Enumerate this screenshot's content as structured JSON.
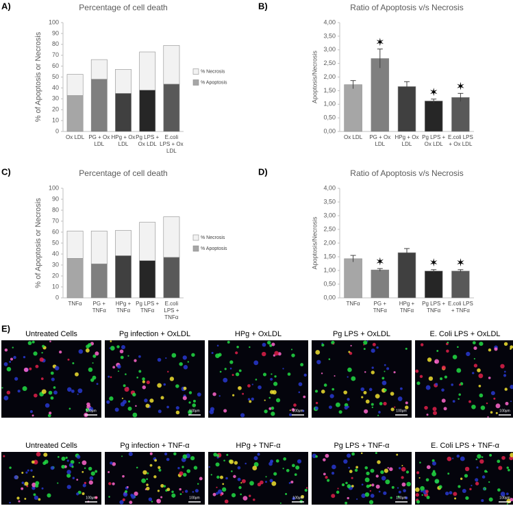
{
  "chart_data": [
    {
      "type": "stacked_bar",
      "panel_label": "A)",
      "title": "Percentage of cell death",
      "y_label": "% of Apoptosis or Necrosis",
      "categories": [
        "Ox LDL",
        "PG + Ox LDL",
        "HPg + Ox LDL",
        "Pg LPS + Ox LDL",
        "E.coli LPS + Ox LDL"
      ],
      "series": [
        {
          "name": "% Apoptosis",
          "colors": [
            "#a6a6a6",
            "#7f7f7f",
            "#404040",
            "#262626",
            "#595959"
          ],
          "values": [
            33,
            48,
            35,
            38,
            43.5
          ]
        },
        {
          "name": "% Necrosis",
          "colors": [
            "#f2f2f2",
            "#f2f2f2",
            "#f2f2f2",
            "#f2f2f2",
            "#f2f2f2"
          ],
          "values": [
            19.5,
            18,
            22,
            35,
            35.5
          ]
        }
      ],
      "ylim": [
        0,
        100
      ],
      "yticks": [
        0,
        10,
        20,
        30,
        40,
        50,
        60,
        70,
        80,
        90,
        100
      ],
      "legend": "right"
    },
    {
      "type": "bar",
      "panel_label": "B)",
      "title": "Ratio of Apoptosis v/s Necrosis",
      "y_label": "Apoptosis/Necrosis",
      "categories": [
        "Ox LDL",
        "PG + Ox LDL",
        "HPg + Ox LDL",
        "Pg LPS + Ox LDL",
        "E.coli LPS + Ox LDL"
      ],
      "values": [
        1.72,
        2.68,
        1.65,
        1.12,
        1.25
      ],
      "errors": [
        0.15,
        0.35,
        0.18,
        0.07,
        0.15
      ],
      "colors": [
        "#a6a6a6",
        "#7f7f7f",
        "#404040",
        "#262626",
        "#595959"
      ],
      "significant": [
        false,
        true,
        false,
        true,
        true
      ],
      "significance_marker": "✶",
      "ylim": [
        0,
        4
      ],
      "yticks": [
        {
          "value": 0,
          "label": "0,00"
        },
        {
          "value": 0.5,
          "label": "0,50"
        },
        {
          "value": 1,
          "label": "1,00"
        },
        {
          "value": 1.5,
          "label": "1,50"
        },
        {
          "value": 2,
          "label": "2,00"
        },
        {
          "value": 2.5,
          "label": "2,50"
        },
        {
          "value": 3,
          "label": "3,00"
        },
        {
          "value": 3.5,
          "label": "3,50"
        },
        {
          "value": 4,
          "label": "4,00"
        }
      ]
    },
    {
      "type": "stacked_bar",
      "panel_label": "C)",
      "title": "Percentage of cell death",
      "y_label": "% of Apoptosis or Necrosis",
      "categories": [
        "TNFα",
        "PG + TNFα",
        "HPg + TNFα",
        "Pg LPS + TNFα",
        "E.coli LPS + TNFα"
      ],
      "series": [
        {
          "name": "% Apoptosis",
          "colors": [
            "#a6a6a6",
            "#7f7f7f",
            "#404040",
            "#262626",
            "#595959"
          ],
          "values": [
            36,
            31,
            38.5,
            34,
            37
          ]
        },
        {
          "name": "% Necrosis",
          "colors": [
            "#f2f2f2",
            "#f2f2f2",
            "#f2f2f2",
            "#f2f2f2",
            "#f2f2f2"
          ],
          "values": [
            25,
            30,
            23,
            35,
            37
          ]
        }
      ],
      "ylim": [
        0,
        100
      ],
      "yticks": [
        0,
        10,
        20,
        30,
        40,
        50,
        60,
        70,
        80,
        90,
        100
      ],
      "legend": "right"
    },
    {
      "type": "bar",
      "panel_label": "D)",
      "title": "Ratio of Apoptosis v/s Necrosis",
      "y_label": "Apoptosis/Necrosis",
      "categories": [
        "TNFα",
        "PG + TNFα",
        "HPg + TNFα",
        "Pg LPS + TNFα",
        "E.coli LPS + TNFα"
      ],
      "values": [
        1.43,
        1.02,
        1.65,
        0.98,
        0.98
      ],
      "errors": [
        0.12,
        0.05,
        0.15,
        0.05,
        0.05
      ],
      "colors": [
        "#a6a6a6",
        "#7f7f7f",
        "#404040",
        "#262626",
        "#595959"
      ],
      "significant": [
        false,
        true,
        false,
        true,
        true
      ],
      "significance_marker": "✶",
      "ylim": [
        0,
        4
      ],
      "yticks": [
        {
          "value": 0,
          "label": "0,00"
        },
        {
          "value": 0.5,
          "label": "0,50"
        },
        {
          "value": 1,
          "label": "1,00"
        },
        {
          "value": 1.5,
          "label": "1,50"
        },
        {
          "value": 2,
          "label": "2,00"
        },
        {
          "value": 2.5,
          "label": "2,50"
        },
        {
          "value": 3,
          "label": "3,00"
        },
        {
          "value": 3.5,
          "label": "3,50"
        },
        {
          "value": 4,
          "label": "4,00"
        }
      ]
    }
  ],
  "figure_e": {
    "label": "E)",
    "rows": [
      [
        {
          "title": "Untreated Cells",
          "scale": "100μm"
        },
        {
          "title": "Pg infection + OxLDL",
          "scale": "100μm"
        },
        {
          "title": "HPg + OxLDL",
          "scale": "100μm"
        },
        {
          "title": "Pg LPS + OxLDL",
          "scale": "100μm"
        },
        {
          "title": "E. Coli LPS + OxLDL",
          "scale": "100μm"
        }
      ],
      [
        {
          "title": "Untreated Cells",
          "scale": "100μm"
        },
        {
          "title": "Pg infection + TNF-α",
          "scale": "100μm"
        },
        {
          "title": "HPg +  TNF-α",
          "scale": "100μm"
        },
        {
          "title": "Pg LPS +  TNF-α",
          "scale": "100μm"
        },
        {
          "title": "E. Coli LPS +  TNF-α",
          "scale": "100μm"
        }
      ]
    ]
  }
}
